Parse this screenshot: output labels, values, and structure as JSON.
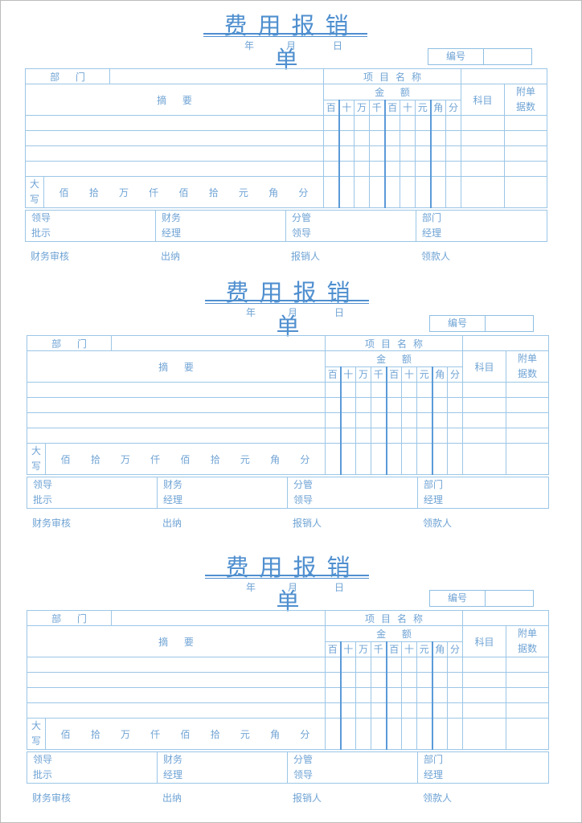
{
  "form": {
    "title": "费用报销单",
    "date": {
      "year": "年",
      "month": "月",
      "day": "日"
    },
    "number_label": "编号",
    "number_value": "",
    "department_label": "部 门",
    "department_value": "",
    "project_label": "项目名称",
    "project_value": "",
    "summary_label": "摘 要",
    "amount_label": "金 额",
    "subject_label": "科目",
    "attachments_label": [
      "附单",
      "据数"
    ],
    "digits": [
      "百",
      "十",
      "万",
      "千",
      "百",
      "十",
      "元",
      "角",
      "分"
    ],
    "capital_label": [
      "大",
      "写"
    ],
    "capital_units": [
      "佰",
      "拾",
      "万",
      "仟",
      "佰",
      "拾",
      "元",
      "角",
      "分"
    ],
    "signatures": [
      [
        "领导",
        "批示"
      ],
      [
        "财务",
        "经理"
      ],
      [
        "分管",
        "领导"
      ],
      [
        "部门",
        "经理"
      ]
    ],
    "footer": [
      "财务审核",
      "出纳",
      "报销人",
      "领款人"
    ]
  },
  "colors": {
    "line": "#9cc6e6",
    "thick_line": "#5b9ad8",
    "text": "#6fa3d4",
    "title": "#4f8fcf"
  }
}
